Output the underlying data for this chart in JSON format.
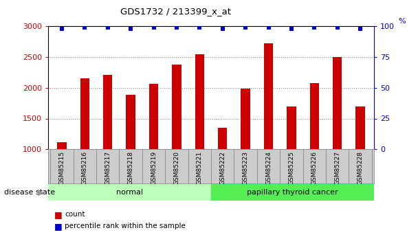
{
  "title": "GDS1732 / 213399_x_at",
  "categories": [
    "GSM85215",
    "GSM85216",
    "GSM85217",
    "GSM85218",
    "GSM85219",
    "GSM85220",
    "GSM85221",
    "GSM85222",
    "GSM85223",
    "GSM85224",
    "GSM85225",
    "GSM85226",
    "GSM85227",
    "GSM85228"
  ],
  "counts": [
    1115,
    2150,
    2210,
    1880,
    2060,
    2380,
    2540,
    1350,
    1980,
    2720,
    1700,
    2070,
    2500,
    1700
  ],
  "percentile": [
    98,
    99,
    99,
    98,
    99,
    99,
    99,
    98,
    99,
    99,
    98,
    99,
    99,
    98
  ],
  "bar_color": "#cc0000",
  "dot_color": "#0000cc",
  "ylim_left": [
    1000,
    3000
  ],
  "ylim_right": [
    0,
    100
  ],
  "yticks_left": [
    1000,
    1500,
    2000,
    2500,
    3000
  ],
  "yticks_right": [
    0,
    25,
    50,
    75,
    100
  ],
  "groups": [
    {
      "label": "normal",
      "start": 0,
      "end": 7,
      "color": "#bbffbb"
    },
    {
      "label": "papillary thyroid cancer",
      "start": 7,
      "end": 14,
      "color": "#55ee55"
    }
  ],
  "disease_state_label": "disease state",
  "legend_items": [
    {
      "label": "count",
      "color": "#cc0000"
    },
    {
      "label": "percentile rank within the sample",
      "color": "#0000cc"
    }
  ],
  "bg_color": "#ffffff",
  "grid_color": "#888888",
  "left_axis_color": "#cc0000",
  "right_axis_color": "#0000cc",
  "bar_width": 0.4,
  "xlabel_area_color": "#cccccc",
  "spine_color": "#000000"
}
